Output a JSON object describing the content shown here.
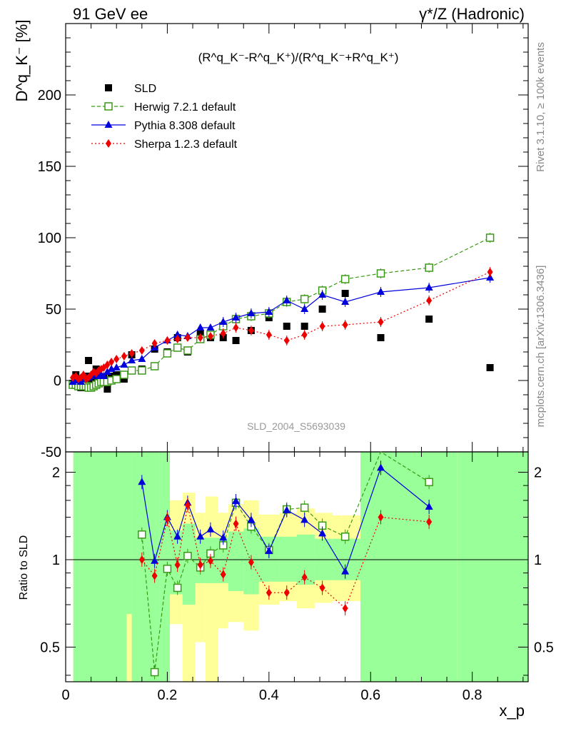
{
  "header": {
    "left": "91 GeV ee",
    "right": "γ*/Z (Hadronic)"
  },
  "side_labels": {
    "rivet": "Rivet 3.1.10, ≥ 100k events",
    "mcplots": "mcplots.cern.ch [arXiv:1306.3436]"
  },
  "watermark": "SLD_2004_S5693039",
  "chart_data": [
    {
      "type": "scatter",
      "panel": "main",
      "formula": "(R^q_K⁻-R^q_K⁺)/(R^q_K⁻+R^q_K⁺)",
      "ylabel": "D^q_K⁻ [%]",
      "xlabel": "x_p",
      "xlim": [
        0,
        0.91
      ],
      "ylim": [
        -50,
        250
      ],
      "yticks": [
        -50,
        0,
        50,
        100,
        150,
        200
      ],
      "xticks": [
        0,
        0.2,
        0.4,
        0.6,
        0.8
      ],
      "legend_position": "top-left",
      "colors": {
        "sld": "#000000",
        "herwig": "#3a9a16",
        "pythia": "#0000dd",
        "sherpa": "#ee0000"
      },
      "x": [
        0.014,
        0.02,
        0.025,
        0.03,
        0.035,
        0.04,
        0.045,
        0.05,
        0.055,
        0.06,
        0.065,
        0.07,
        0.075,
        0.082,
        0.09,
        0.1,
        0.115,
        0.13,
        0.15,
        0.175,
        0.2,
        0.22,
        0.24,
        0.265,
        0.285,
        0.31,
        0.335,
        0.365,
        0.4,
        0.435,
        0.47,
        0.505,
        0.55,
        0.62,
        0.715,
        0.835
      ],
      "series": [
        {
          "name": "SLD",
          "marker": "filled-square",
          "values": [
            -2,
            4,
            1,
            -5,
            -2,
            3,
            14,
            -1,
            2,
            8,
            3,
            1,
            2,
            -6,
            3,
            4,
            1,
            18,
            8,
            22,
            20,
            30,
            20,
            33,
            30,
            30,
            28,
            35,
            44,
            38,
            38,
            50,
            61,
            30,
            43,
            9
          ]
        },
        {
          "name": "Herwig 7.2.1 default",
          "marker": "open-square",
          "values": [
            -3,
            -3,
            -4,
            -4,
            -4,
            -4,
            -5,
            -5,
            -4,
            -3,
            -2,
            -1,
            -1,
            -1,
            0,
            1,
            4,
            7,
            7,
            10,
            19,
            23,
            21,
            29,
            32,
            38,
            43,
            45,
            47,
            55,
            57,
            63,
            71,
            75,
            79,
            100
          ]
        },
        {
          "name": "Pythia 8.308 default",
          "marker": "filled-triangle",
          "values": [
            -1,
            0,
            1,
            -1,
            1,
            2,
            2,
            3,
            4,
            5,
            3,
            4,
            3,
            6,
            8,
            9,
            11,
            14,
            15,
            23,
            28,
            32,
            31,
            37,
            37,
            41,
            44,
            47,
            48,
            56,
            50,
            60,
            55,
            62,
            65,
            72
          ]
        },
        {
          "name": "Sherpa 1.2.3 default",
          "marker": "filled-diamond",
          "values": [
            2,
            3,
            1,
            2,
            4,
            1,
            2,
            4,
            6,
            5,
            7,
            8,
            9,
            11,
            13,
            15,
            17,
            19,
            21,
            26,
            28,
            29,
            30,
            30,
            31,
            33,
            37,
            35,
            32,
            28,
            32,
            38,
            39,
            41,
            56,
            76
          ]
        }
      ]
    },
    {
      "type": "line",
      "panel": "ratio",
      "ylabel": "Ratio to SLD",
      "xlabel": "x_p",
      "xlim": [
        0,
        0.91
      ],
      "ylim": [
        0.38,
        2.35
      ],
      "log_scale_y": true,
      "yticks": [
        0.5,
        1,
        2
      ],
      "xticks": [
        0,
        0.2,
        0.4,
        0.6,
        0.8
      ],
      "x": [
        0.15,
        0.175,
        0.2,
        0.22,
        0.24,
        0.265,
        0.285,
        0.31,
        0.335,
        0.365,
        0.4,
        0.435,
        0.47,
        0.505,
        0.55,
        0.62,
        0.715
      ],
      "series": [
        {
          "name": "Herwig 7.2.1 default",
          "values": [
            1.22,
            0.41,
            0.93,
            0.8,
            1.03,
            0.94,
            1.05,
            1.12,
            1.57,
            1.3,
            1.08,
            1.49,
            1.51,
            1.31,
            1.2,
            2.45,
            1.85
          ]
        },
        {
          "name": "Pythia 8.308 default",
          "values": [
            1.85,
            0.99,
            1.4,
            1.2,
            1.57,
            1.2,
            1.27,
            1.19,
            1.59,
            1.37,
            1.07,
            1.48,
            1.37,
            1.23,
            0.91,
            2.07,
            1.52
          ]
        },
        {
          "name": "Sherpa 1.2.3 default",
          "values": [
            1.0,
            0.88,
            1.38,
            0.96,
            1.54,
            0.96,
            0.99,
            0.89,
            1.33,
            0.98,
            0.77,
            0.77,
            0.87,
            0.8,
            0.68,
            1.4,
            1.35
          ]
        }
      ],
      "uncertainty_band": {
        "x_edges": [
          0.015,
          0.12,
          0.13,
          0.16,
          0.185,
          0.205,
          0.23,
          0.255,
          0.275,
          0.3,
          0.32,
          0.35,
          0.38,
          0.42,
          0.455,
          0.49,
          0.525,
          0.58,
          0.665,
          0.77,
          0.91
        ],
        "inner_low": [
          0.38,
          0.65,
          0.38,
          0.38,
          0.38,
          0.76,
          0.7,
          0.83,
          0.83,
          0.83,
          0.78,
          0.76,
          0.84,
          0.84,
          0.82,
          0.85,
          0.85,
          0.38,
          0.38,
          0.38
        ],
        "inner_high": [
          2.35,
          2.35,
          2.35,
          2.35,
          2.35,
          1.26,
          1.33,
          1.19,
          1.19,
          1.19,
          1.25,
          1.28,
          1.2,
          1.2,
          1.22,
          1.18,
          1.18,
          2.35,
          2.35,
          2.35
        ],
        "outer_low": [
          0.38,
          0.38,
          0.38,
          0.38,
          0.38,
          0.6,
          0.38,
          0.52,
          0.38,
          0.58,
          0.61,
          0.57,
          0.7,
          0.72,
          0.68,
          0.71,
          0.72,
          0.38,
          0.38,
          0.38
        ],
        "outer_high": [
          2.35,
          2.35,
          2.35,
          2.35,
          2.35,
          1.6,
          1.7,
          1.45,
          1.65,
          1.45,
          1.55,
          1.6,
          1.43,
          1.45,
          1.5,
          1.45,
          1.42,
          1.95,
          2.35,
          2.35
        ]
      }
    }
  ]
}
